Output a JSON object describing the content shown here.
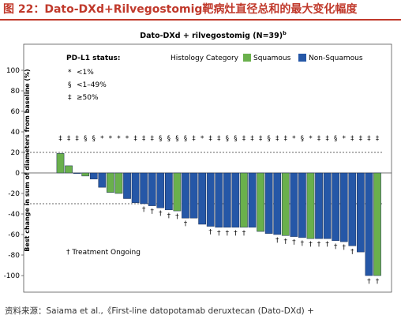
{
  "figure_title": "图 22：Dato-DXd+Rilvegostomig靶病灶直径总和的最大变化幅度",
  "source_text": "资料来源：Saiama  et al.,《First-line datopotamab deruxtecan  (Dato-DXd) +",
  "chart_data": {
    "type": "bar",
    "title": "Dato-DXd + rilvegostomig (N=39)",
    "title_superscript": "b",
    "ylabel": "Best change in sum of diameters from baseline (%)",
    "ylim": [
      -110,
      110
    ],
    "yticks": [
      -100,
      -80,
      -60,
      -40,
      -20,
      0,
      20,
      40,
      60,
      80,
      100
    ],
    "reference_lines": [
      20,
      -30
    ],
    "legend_title": "Histology Category",
    "legend": [
      {
        "name": "Squamous",
        "color": "#6ab04c"
      },
      {
        "name": "Non-Squamous",
        "color": "#2557a7"
      }
    ],
    "pdl1_title": "PD-L1 status:",
    "pdl1_key": [
      {
        "symbol": "*",
        "label": "<1%"
      },
      {
        "symbol": "§",
        "label": "<1–49%"
      },
      {
        "symbol": "‡",
        "label": "≥50%"
      }
    ],
    "ongoing_note": "† Treatment Ongoing",
    "values": [
      19,
      7,
      0,
      -3,
      -6,
      -14,
      -19,
      -20,
      -25,
      -29,
      -30,
      -32,
      -34,
      -36,
      -37,
      -44,
      -44,
      -50,
      -52,
      -53,
      -53,
      -53,
      -53,
      -53,
      -57,
      -59,
      -60,
      -61,
      -62,
      -63,
      -64,
      -64,
      -64,
      -66,
      -67,
      -71,
      -77,
      -100,
      -100
    ],
    "histology": [
      "Squamous",
      "Squamous",
      "Non-Squamous",
      "Squamous",
      "Non-Squamous",
      "Non-Squamous",
      "Squamous",
      "Squamous",
      "Non-Squamous",
      "Non-Squamous",
      "Non-Squamous",
      "Non-Squamous",
      "Non-Squamous",
      "Non-Squamous",
      "Squamous",
      "Non-Squamous",
      "Non-Squamous",
      "Non-Squamous",
      "Non-Squamous",
      "Non-Squamous",
      "Non-Squamous",
      "Non-Squamous",
      "Squamous",
      "Non-Squamous",
      "Squamous",
      "Non-Squamous",
      "Non-Squamous",
      "Squamous",
      "Non-Squamous",
      "Non-Squamous",
      "Squamous",
      "Non-Squamous",
      "Non-Squamous",
      "Non-Squamous",
      "Non-Squamous",
      "Non-Squamous",
      "Non-Squamous",
      "Non-Squamous",
      "Squamous"
    ],
    "pdl1": [
      "‡",
      "‡",
      "‡",
      "§",
      "§",
      "*",
      "*",
      "*",
      "*",
      "‡",
      "‡",
      "‡",
      "§",
      "§",
      "§",
      "§",
      "‡",
      "*",
      "‡",
      "‡",
      "§",
      "§",
      "‡",
      "‡",
      "‡",
      "§",
      "‡",
      "‡",
      "*",
      "§",
      "*",
      "‡",
      "‡",
      "§",
      "*",
      "‡",
      "‡",
      "‡",
      "‡"
    ],
    "ongoing": [
      false,
      false,
      false,
      false,
      false,
      false,
      false,
      false,
      false,
      false,
      true,
      true,
      true,
      true,
      true,
      true,
      false,
      false,
      true,
      true,
      true,
      true,
      true,
      false,
      false,
      false,
      true,
      true,
      true,
      true,
      true,
      true,
      true,
      true,
      true,
      true,
      false,
      true,
      true
    ]
  }
}
